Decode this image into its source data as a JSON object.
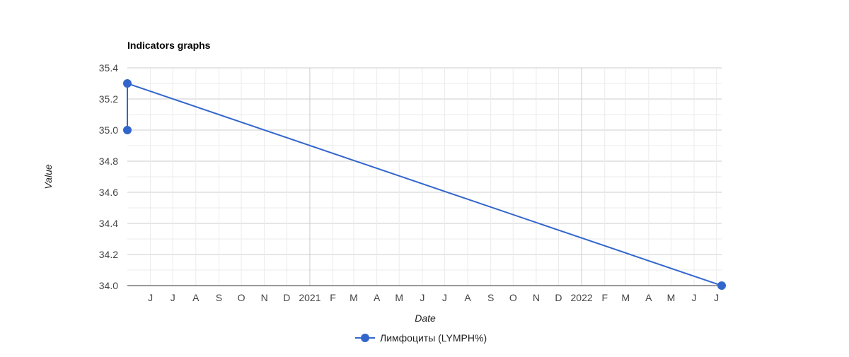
{
  "chart_data": {
    "type": "line",
    "title": "Indicators graphs",
    "xlabel": "Date",
    "ylabel": "Value",
    "xlim": [
      "2020-05-01",
      "2022-07-08"
    ],
    "ylim": [
      34.0,
      35.4
    ],
    "yticks": [
      "34.0",
      "34.2",
      "34.4",
      "34.6",
      "34.8",
      "35.0",
      "35.2",
      "35.4"
    ],
    "xticks": [
      {
        "date": "2020-06-01",
        "label": "J"
      },
      {
        "date": "2020-07-01",
        "label": "J"
      },
      {
        "date": "2020-08-01",
        "label": "A"
      },
      {
        "date": "2020-09-01",
        "label": "S"
      },
      {
        "date": "2020-10-01",
        "label": "O"
      },
      {
        "date": "2020-11-01",
        "label": "N"
      },
      {
        "date": "2020-12-01",
        "label": "D"
      },
      {
        "date": "2021-01-01",
        "label": "2021",
        "major": true
      },
      {
        "date": "2021-02-01",
        "label": "F"
      },
      {
        "date": "2021-03-01",
        "label": "M"
      },
      {
        "date": "2021-04-01",
        "label": "A"
      },
      {
        "date": "2021-05-01",
        "label": "M"
      },
      {
        "date": "2021-06-01",
        "label": "J"
      },
      {
        "date": "2021-07-01",
        "label": "J"
      },
      {
        "date": "2021-08-01",
        "label": "A"
      },
      {
        "date": "2021-09-01",
        "label": "S"
      },
      {
        "date": "2021-10-01",
        "label": "O"
      },
      {
        "date": "2021-11-01",
        "label": "N"
      },
      {
        "date": "2021-12-01",
        "label": "D"
      },
      {
        "date": "2022-01-01",
        "label": "2022",
        "major": true
      },
      {
        "date": "2022-02-01",
        "label": "F"
      },
      {
        "date": "2022-03-01",
        "label": "M"
      },
      {
        "date": "2022-04-01",
        "label": "A"
      },
      {
        "date": "2022-05-01",
        "label": "M"
      },
      {
        "date": "2022-06-01",
        "label": "J"
      },
      {
        "date": "2022-07-01",
        "label": "J"
      }
    ],
    "grid": true,
    "legend_position": "bottom",
    "series": [
      {
        "name": "Лимфоциты (LYMPH%)",
        "color": "#3366cc",
        "points": [
          {
            "x": "2020-05-01",
            "y": 35.0
          },
          {
            "x": "2020-05-01",
            "y": 35.3
          },
          {
            "x": "2022-07-08",
            "y": 34.0
          }
        ]
      }
    ]
  }
}
